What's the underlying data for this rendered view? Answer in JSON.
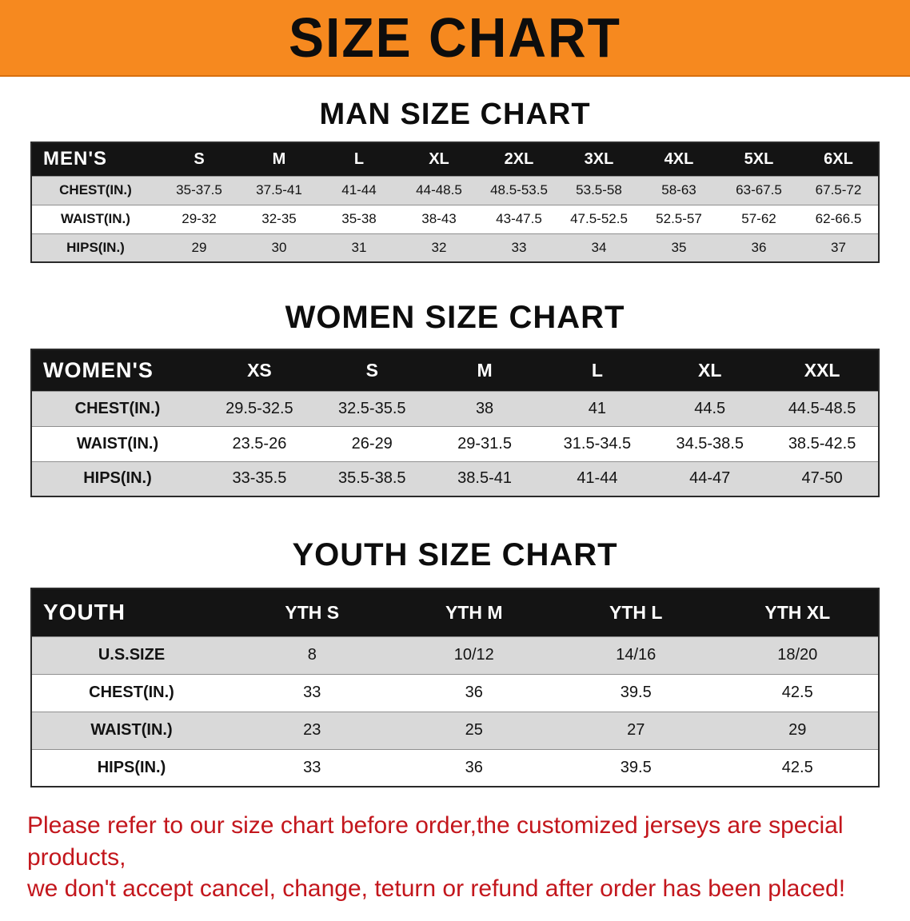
{
  "banner": {
    "title": "SIZE CHART"
  },
  "colors": {
    "banner_bg": "#f6891f",
    "table_header_bg": "#141414",
    "table_header_text": "#ffffff",
    "row_shade": "#d9d9d9",
    "notice_text": "#c3161c"
  },
  "sections": [
    {
      "id": "men",
      "heading": "MAN SIZE CHART",
      "header_label": "MEN'S",
      "columns": [
        "S",
        "M",
        "L",
        "XL",
        "2XL",
        "3XL",
        "4XL",
        "5XL",
        "6XL"
      ],
      "rows": [
        {
          "label": "CHEST(IN.)",
          "values": [
            "35-37.5",
            "37.5-41",
            "41-44",
            "44-48.5",
            "48.5-53.5",
            "53.5-58",
            "58-63",
            "63-67.5",
            "67.5-72"
          ]
        },
        {
          "label": "WAIST(IN.)",
          "values": [
            "29-32",
            "32-35",
            "35-38",
            "38-43",
            "43-47.5",
            "47.5-52.5",
            "52.5-57",
            "57-62",
            "62-66.5"
          ]
        },
        {
          "label": "HIPS(IN.)",
          "values": [
            "29",
            "30",
            "31",
            "32",
            "33",
            "34",
            "35",
            "36",
            "37"
          ]
        }
      ]
    },
    {
      "id": "women",
      "heading": "WOMEN SIZE CHART",
      "header_label": "WOMEN'S",
      "columns": [
        "XS",
        "S",
        "M",
        "L",
        "XL",
        "XXL"
      ],
      "rows": [
        {
          "label": "CHEST(IN.)",
          "values": [
            "29.5-32.5",
            "32.5-35.5",
            "38",
            "41",
            "44.5",
            "44.5-48.5"
          ]
        },
        {
          "label": "WAIST(IN.)",
          "values": [
            "23.5-26",
            "26-29",
            "29-31.5",
            "31.5-34.5",
            "34.5-38.5",
            "38.5-42.5"
          ]
        },
        {
          "label": "HIPS(IN.)",
          "values": [
            "33-35.5",
            "35.5-38.5",
            "38.5-41",
            "41-44",
            "44-47",
            "47-50"
          ]
        }
      ]
    },
    {
      "id": "youth",
      "heading": "YOUTH SIZE CHART",
      "header_label": "YOUTH",
      "columns": [
        "YTH S",
        "YTH M",
        "YTH L",
        "YTH XL"
      ],
      "rows": [
        {
          "label": "U.S.SIZE",
          "values": [
            "8",
            "10/12",
            "14/16",
            "18/20"
          ]
        },
        {
          "label": "CHEST(IN.)",
          "values": [
            "33",
            "36",
            "39.5",
            "42.5"
          ]
        },
        {
          "label": "WAIST(IN.)",
          "values": [
            "23",
            "25",
            "27",
            "29"
          ]
        },
        {
          "label": "HIPS(IN.)",
          "values": [
            "33",
            "36",
            "39.5",
            "42.5"
          ]
        }
      ]
    }
  ],
  "notice": {
    "line1": "Please refer to our size chart before order,the customized jerseys are special products,",
    "line2": "we don't accept cancel, change, teturn or refund after order has been placed!"
  }
}
